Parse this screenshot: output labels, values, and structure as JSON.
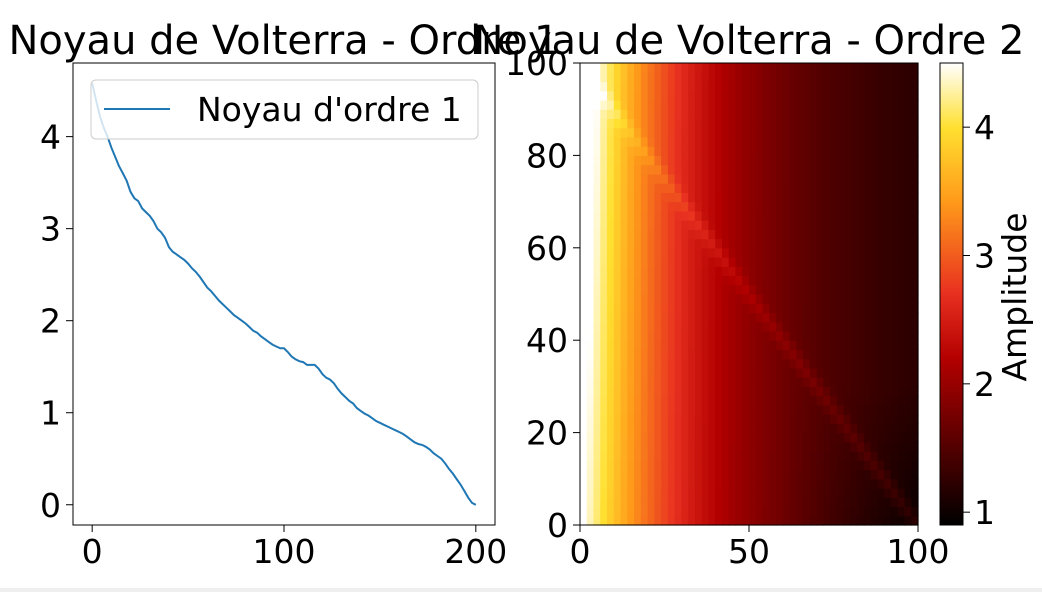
{
  "chart_data": [
    {
      "type": "line",
      "title": "Noyau de Volterra - Ordre 1",
      "xlabel": "",
      "ylabel": "",
      "xlim": [
        -10,
        210
      ],
      "ylim": [
        -0.22,
        4.8
      ],
      "xticks": [
        0,
        100,
        200
      ],
      "yticks": [
        0,
        1,
        2,
        3,
        4
      ],
      "legend_position": "top-right",
      "grid": false,
      "series": [
        {
          "name": "Noyau d'ordre 1",
          "color": "#1f77b4",
          "points": [
            [
              0,
              4.58
            ],
            [
              2,
              4.4
            ],
            [
              4,
              4.22
            ],
            [
              6,
              4.1
            ],
            [
              8,
              4.0
            ],
            [
              10,
              3.88
            ],
            [
              12,
              3.78
            ],
            [
              14,
              3.68
            ],
            [
              16,
              3.6
            ],
            [
              18,
              3.52
            ],
            [
              20,
              3.4
            ],
            [
              22,
              3.33
            ],
            [
              24,
              3.3
            ],
            [
              26,
              3.22
            ],
            [
              28,
              3.18
            ],
            [
              30,
              3.14
            ],
            [
              32,
              3.08
            ],
            [
              34,
              3.0
            ],
            [
              36,
              2.96
            ],
            [
              38,
              2.9
            ],
            [
              40,
              2.8
            ],
            [
              42,
              2.75
            ],
            [
              44,
              2.72
            ],
            [
              46,
              2.69
            ],
            [
              48,
              2.66
            ],
            [
              50,
              2.62
            ],
            [
              52,
              2.57
            ],
            [
              54,
              2.53
            ],
            [
              56,
              2.48
            ],
            [
              58,
              2.42
            ],
            [
              60,
              2.36
            ],
            [
              62,
              2.32
            ],
            [
              64,
              2.27
            ],
            [
              66,
              2.22
            ],
            [
              68,
              2.18
            ],
            [
              70,
              2.14
            ],
            [
              72,
              2.1
            ],
            [
              74,
              2.06
            ],
            [
              76,
              2.03
            ],
            [
              78,
              2.0
            ],
            [
              80,
              1.97
            ],
            [
              82,
              1.93
            ],
            [
              84,
              1.89
            ],
            [
              86,
              1.87
            ],
            [
              88,
              1.83
            ],
            [
              90,
              1.8
            ],
            [
              92,
              1.77
            ],
            [
              94,
              1.74
            ],
            [
              96,
              1.72
            ],
            [
              98,
              1.7
            ],
            [
              100,
              1.7
            ],
            [
              102,
              1.66
            ],
            [
              104,
              1.61
            ],
            [
              106,
              1.58
            ],
            [
              108,
              1.56
            ],
            [
              110,
              1.55
            ],
            [
              112,
              1.52
            ],
            [
              114,
              1.52
            ],
            [
              116,
              1.52
            ],
            [
              118,
              1.48
            ],
            [
              120,
              1.42
            ],
            [
              122,
              1.38
            ],
            [
              124,
              1.36
            ],
            [
              126,
              1.32
            ],
            [
              128,
              1.26
            ],
            [
              130,
              1.21
            ],
            [
              132,
              1.17
            ],
            [
              134,
              1.13
            ],
            [
              136,
              1.1
            ],
            [
              138,
              1.05
            ],
            [
              140,
              1.02
            ],
            [
              142,
              0.99
            ],
            [
              144,
              0.97
            ],
            [
              146,
              0.94
            ],
            [
              148,
              0.91
            ],
            [
              150,
              0.89
            ],
            [
              152,
              0.87
            ],
            [
              154,
              0.85
            ],
            [
              156,
              0.83
            ],
            [
              158,
              0.81
            ],
            [
              160,
              0.79
            ],
            [
              162,
              0.77
            ],
            [
              164,
              0.74
            ],
            [
              166,
              0.71
            ],
            [
              168,
              0.68
            ],
            [
              170,
              0.66
            ],
            [
              172,
              0.65
            ],
            [
              174,
              0.63
            ],
            [
              176,
              0.6
            ],
            [
              178,
              0.56
            ],
            [
              180,
              0.53
            ],
            [
              182,
              0.5
            ],
            [
              184,
              0.45
            ],
            [
              186,
              0.39
            ],
            [
              188,
              0.34
            ],
            [
              190,
              0.28
            ],
            [
              192,
              0.22
            ],
            [
              194,
              0.15
            ],
            [
              196,
              0.08
            ],
            [
              198,
              0.02
            ],
            [
              200,
              0.0
            ]
          ]
        }
      ]
    },
    {
      "type": "heatmap",
      "title": "Noyau de Volterra - Ordre 2",
      "xlabel": "",
      "ylabel": "",
      "xlim": [
        0,
        100
      ],
      "ylim": [
        0,
        100
      ],
      "xticks": [
        0,
        50,
        100
      ],
      "yticks": [
        0,
        20,
        40,
        60,
        80,
        100
      ],
      "colormap": "hot",
      "colorbar": {
        "label": "Amplitude",
        "range": [
          0.9,
          4.5
        ],
        "ticks": [
          1,
          2,
          3,
          4
        ]
      },
      "description_values": {
        "peak_at": [
          0,
          100
        ],
        "peak_value": 4.5,
        "min_at": [
          100,
          0
        ],
        "min_value": 0.9,
        "diagonal_ridge": "from (0,100) to (100,0)"
      }
    }
  ]
}
